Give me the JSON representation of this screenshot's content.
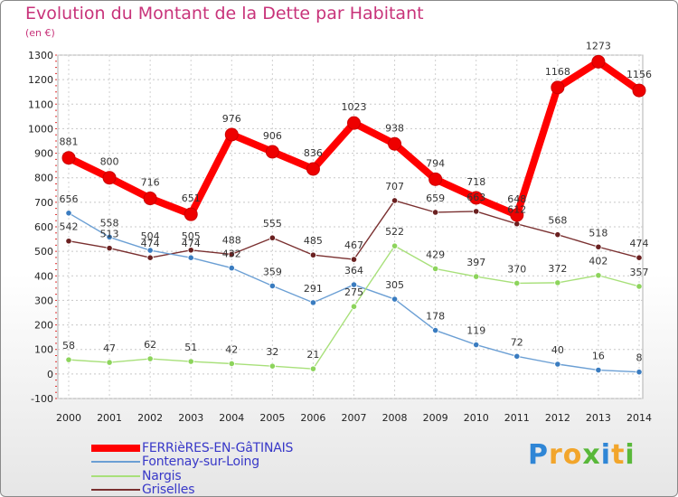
{
  "chart_data": {
    "type": "line",
    "title": "Evolution du Montant de la Dette par Habitant",
    "subtitle": "(en €)",
    "xlabel": "",
    "ylabel": "",
    "categories": [
      "2000",
      "2001",
      "2002",
      "2003",
      "2004",
      "2005",
      "2006",
      "2007",
      "2008",
      "2009",
      "2010",
      "2011",
      "2012",
      "2013",
      "2014"
    ],
    "ylim": [
      -100,
      1300
    ],
    "yticks": [
      -100,
      0,
      100,
      200,
      300,
      400,
      500,
      600,
      700,
      800,
      900,
      1000,
      1100,
      1200,
      1300
    ],
    "grid": true,
    "legend_position": "bottom-left",
    "series": [
      {
        "name": "FERRièRES-EN-GâTINAIS",
        "color": "#ff0000",
        "marker_color": "#ee0000",
        "values": [
          881,
          800,
          716,
          651,
          976,
          906,
          836,
          1023,
          938,
          794,
          718,
          648,
          1168,
          1273,
          1156
        ],
        "labels": [
          "881",
          "800",
          "716",
          "651",
          "976",
          "906",
          "836",
          "1023",
          "938",
          "794",
          "718",
          "648",
          "1168",
          "1273",
          "1156"
        ]
      },
      {
        "name": "Fontenay-sur-Loing",
        "color": "#6b9fd4",
        "marker_color": "#3a7cc0",
        "values": [
          656,
          558,
          504,
          474,
          432,
          359,
          291,
          364,
          305,
          178,
          119,
          72,
          40,
          16,
          8
        ],
        "labels": [
          "656",
          "558",
          "504",
          "474",
          "432",
          "359",
          "291",
          "364",
          "305",
          "178",
          "119",
          "72",
          "40",
          "16",
          "8"
        ]
      },
      {
        "name": "Nargis",
        "color": "#a8e07a",
        "marker_color": "#8dd45c",
        "values": [
          58,
          47,
          62,
          51,
          42,
          32,
          21,
          275,
          522,
          429,
          397,
          370,
          372,
          402,
          357
        ],
        "labels": [
          "58",
          "47",
          "62",
          "51",
          "42",
          "32",
          "21",
          "275",
          "522",
          "429",
          "397",
          "370",
          "372",
          "402",
          "357"
        ]
      },
      {
        "name": "Griselles",
        "color": "#7a3030",
        "marker_color": "#6a2020",
        "values": [
          542,
          513,
          474,
          505,
          488,
          555,
          485,
          467,
          707,
          659,
          663,
          612,
          568,
          518,
          474
        ],
        "labels": [
          "542",
          "513",
          "474",
          "505",
          "488",
          "555",
          "485",
          "467",
          "707",
          "659",
          "663",
          "612",
          "568",
          "518",
          "474"
        ]
      }
    ]
  },
  "brand": {
    "logo_letters": [
      "P",
      "r",
      "o",
      "x",
      "i",
      "t",
      "i"
    ],
    "logo_colors": [
      "#2f86d6",
      "#f2a52b",
      "#f2a52b",
      "#59b83a",
      "#2f86d6",
      "#f2a52b",
      "#59b83a"
    ]
  }
}
